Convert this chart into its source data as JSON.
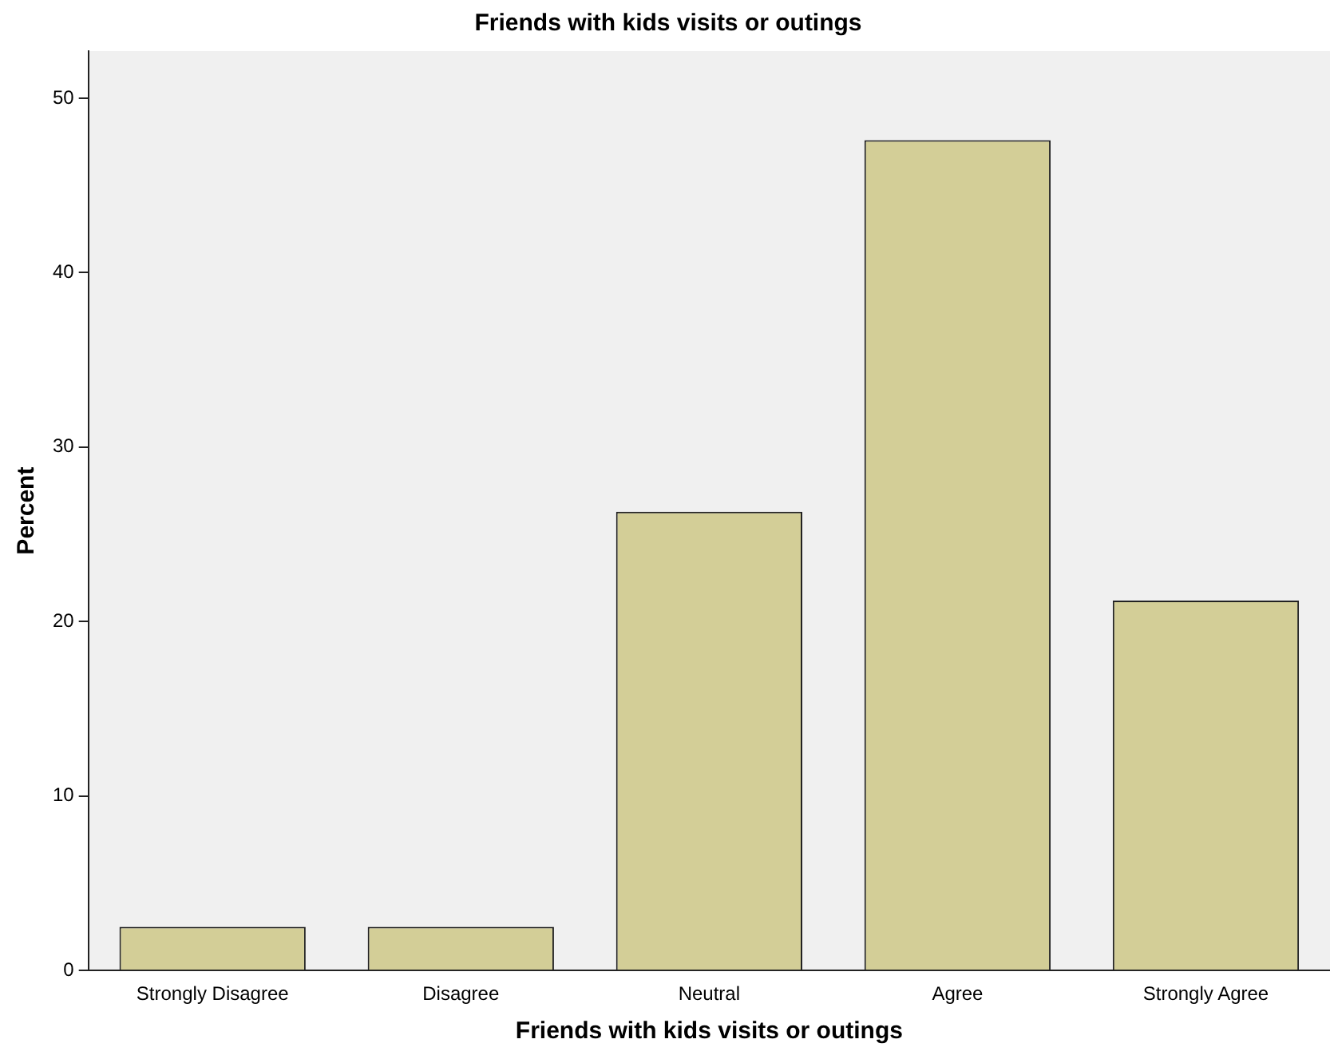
{
  "chart_data": {
    "type": "bar",
    "title": "Friends with kids visits or outings",
    "xlabel": "Friends with kids visits or outings",
    "ylabel": "Percent",
    "categories": [
      "Strongly Disagree",
      "Disagree",
      "Neutral",
      "Agree",
      "Strongly Agree"
    ],
    "values": [
      2.5,
      2.5,
      26.3,
      47.6,
      21.2
    ],
    "color": "#d3ce97",
    "ylim": [
      0,
      52.7
    ],
    "yticks": [
      0,
      10,
      20,
      30,
      40,
      50
    ],
    "grid": false,
    "legend": false
  }
}
